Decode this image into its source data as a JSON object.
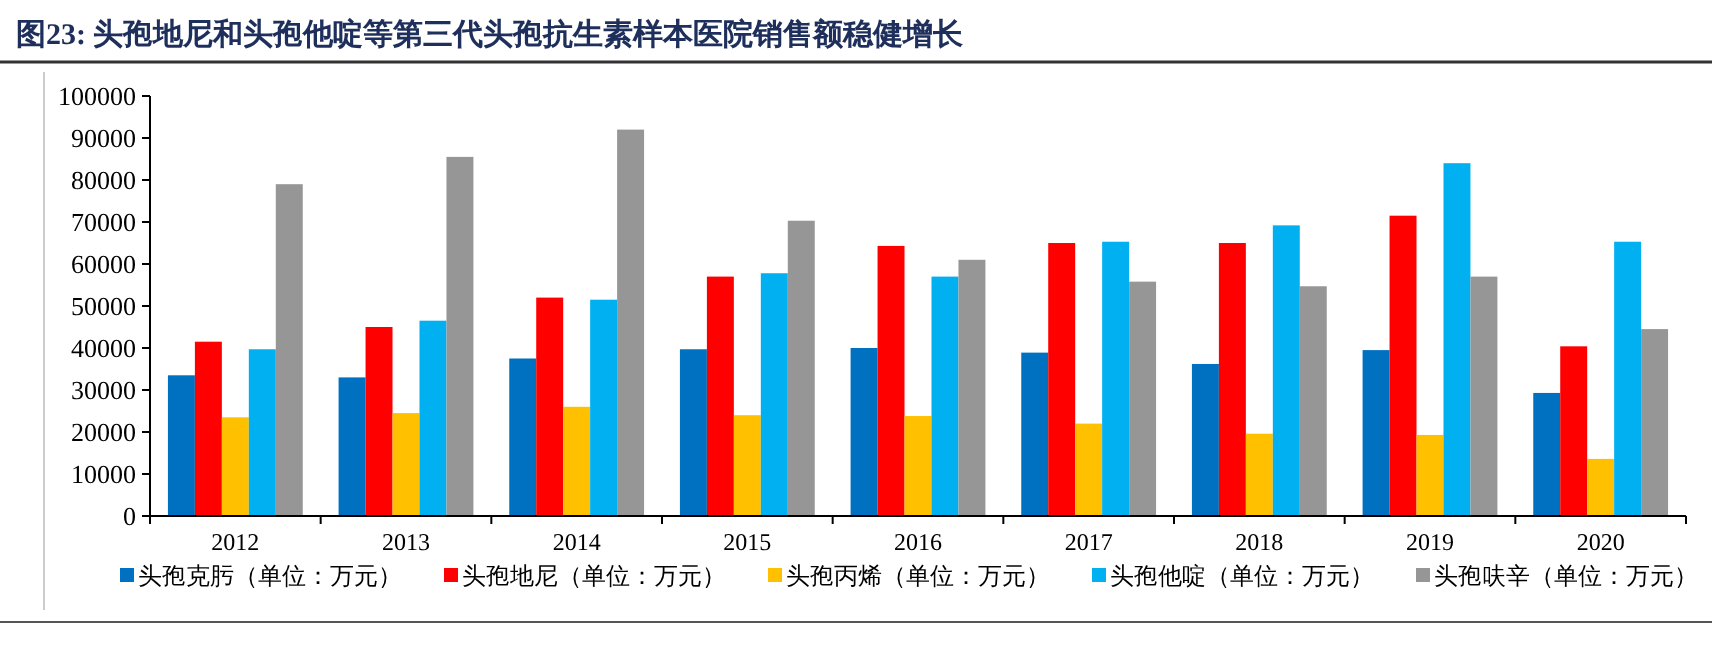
{
  "chart_data": {
    "type": "bar",
    "title": "图23:  头孢地尼和头孢他啶等第三代头孢抗生素样本医院销售额稳健增长",
    "categories": [
      "2012",
      "2013",
      "2014",
      "2015",
      "2016",
      "2017",
      "2018",
      "2019",
      "2020"
    ],
    "series": [
      {
        "name": "头孢克肟（单位：万元）",
        "color": "#0070c0",
        "values": [
          33500,
          33000,
          37500,
          39700,
          40000,
          38900,
          36200,
          39500,
          29300
        ]
      },
      {
        "name": "头孢地尼（单位：万元）",
        "color": "#ff0000",
        "values": [
          41500,
          45000,
          52000,
          57000,
          64300,
          65000,
          65000,
          71500,
          40400
        ]
      },
      {
        "name": "头孢丙烯（单位：万元）",
        "color": "#ffc000",
        "values": [
          23500,
          24500,
          26000,
          24000,
          23800,
          22000,
          19600,
          19300,
          13600
        ]
      },
      {
        "name": "头孢他啶（单位：万元）",
        "color": "#00b0f0",
        "values": [
          39700,
          46500,
          51500,
          57800,
          57000,
          65300,
          69200,
          84000,
          65300
        ]
      },
      {
        "name": "头孢呋辛（单位：万元）",
        "color": "#969696",
        "values": [
          79000,
          85500,
          92000,
          70300,
          61000,
          55800,
          54700,
          57000,
          44500
        ]
      }
    ],
    "ylim": [
      0,
      100000
    ],
    "yticks": [
      0,
      10000,
      20000,
      30000,
      40000,
      50000,
      60000,
      70000,
      80000,
      90000,
      100000
    ],
    "legend": "bottom"
  }
}
